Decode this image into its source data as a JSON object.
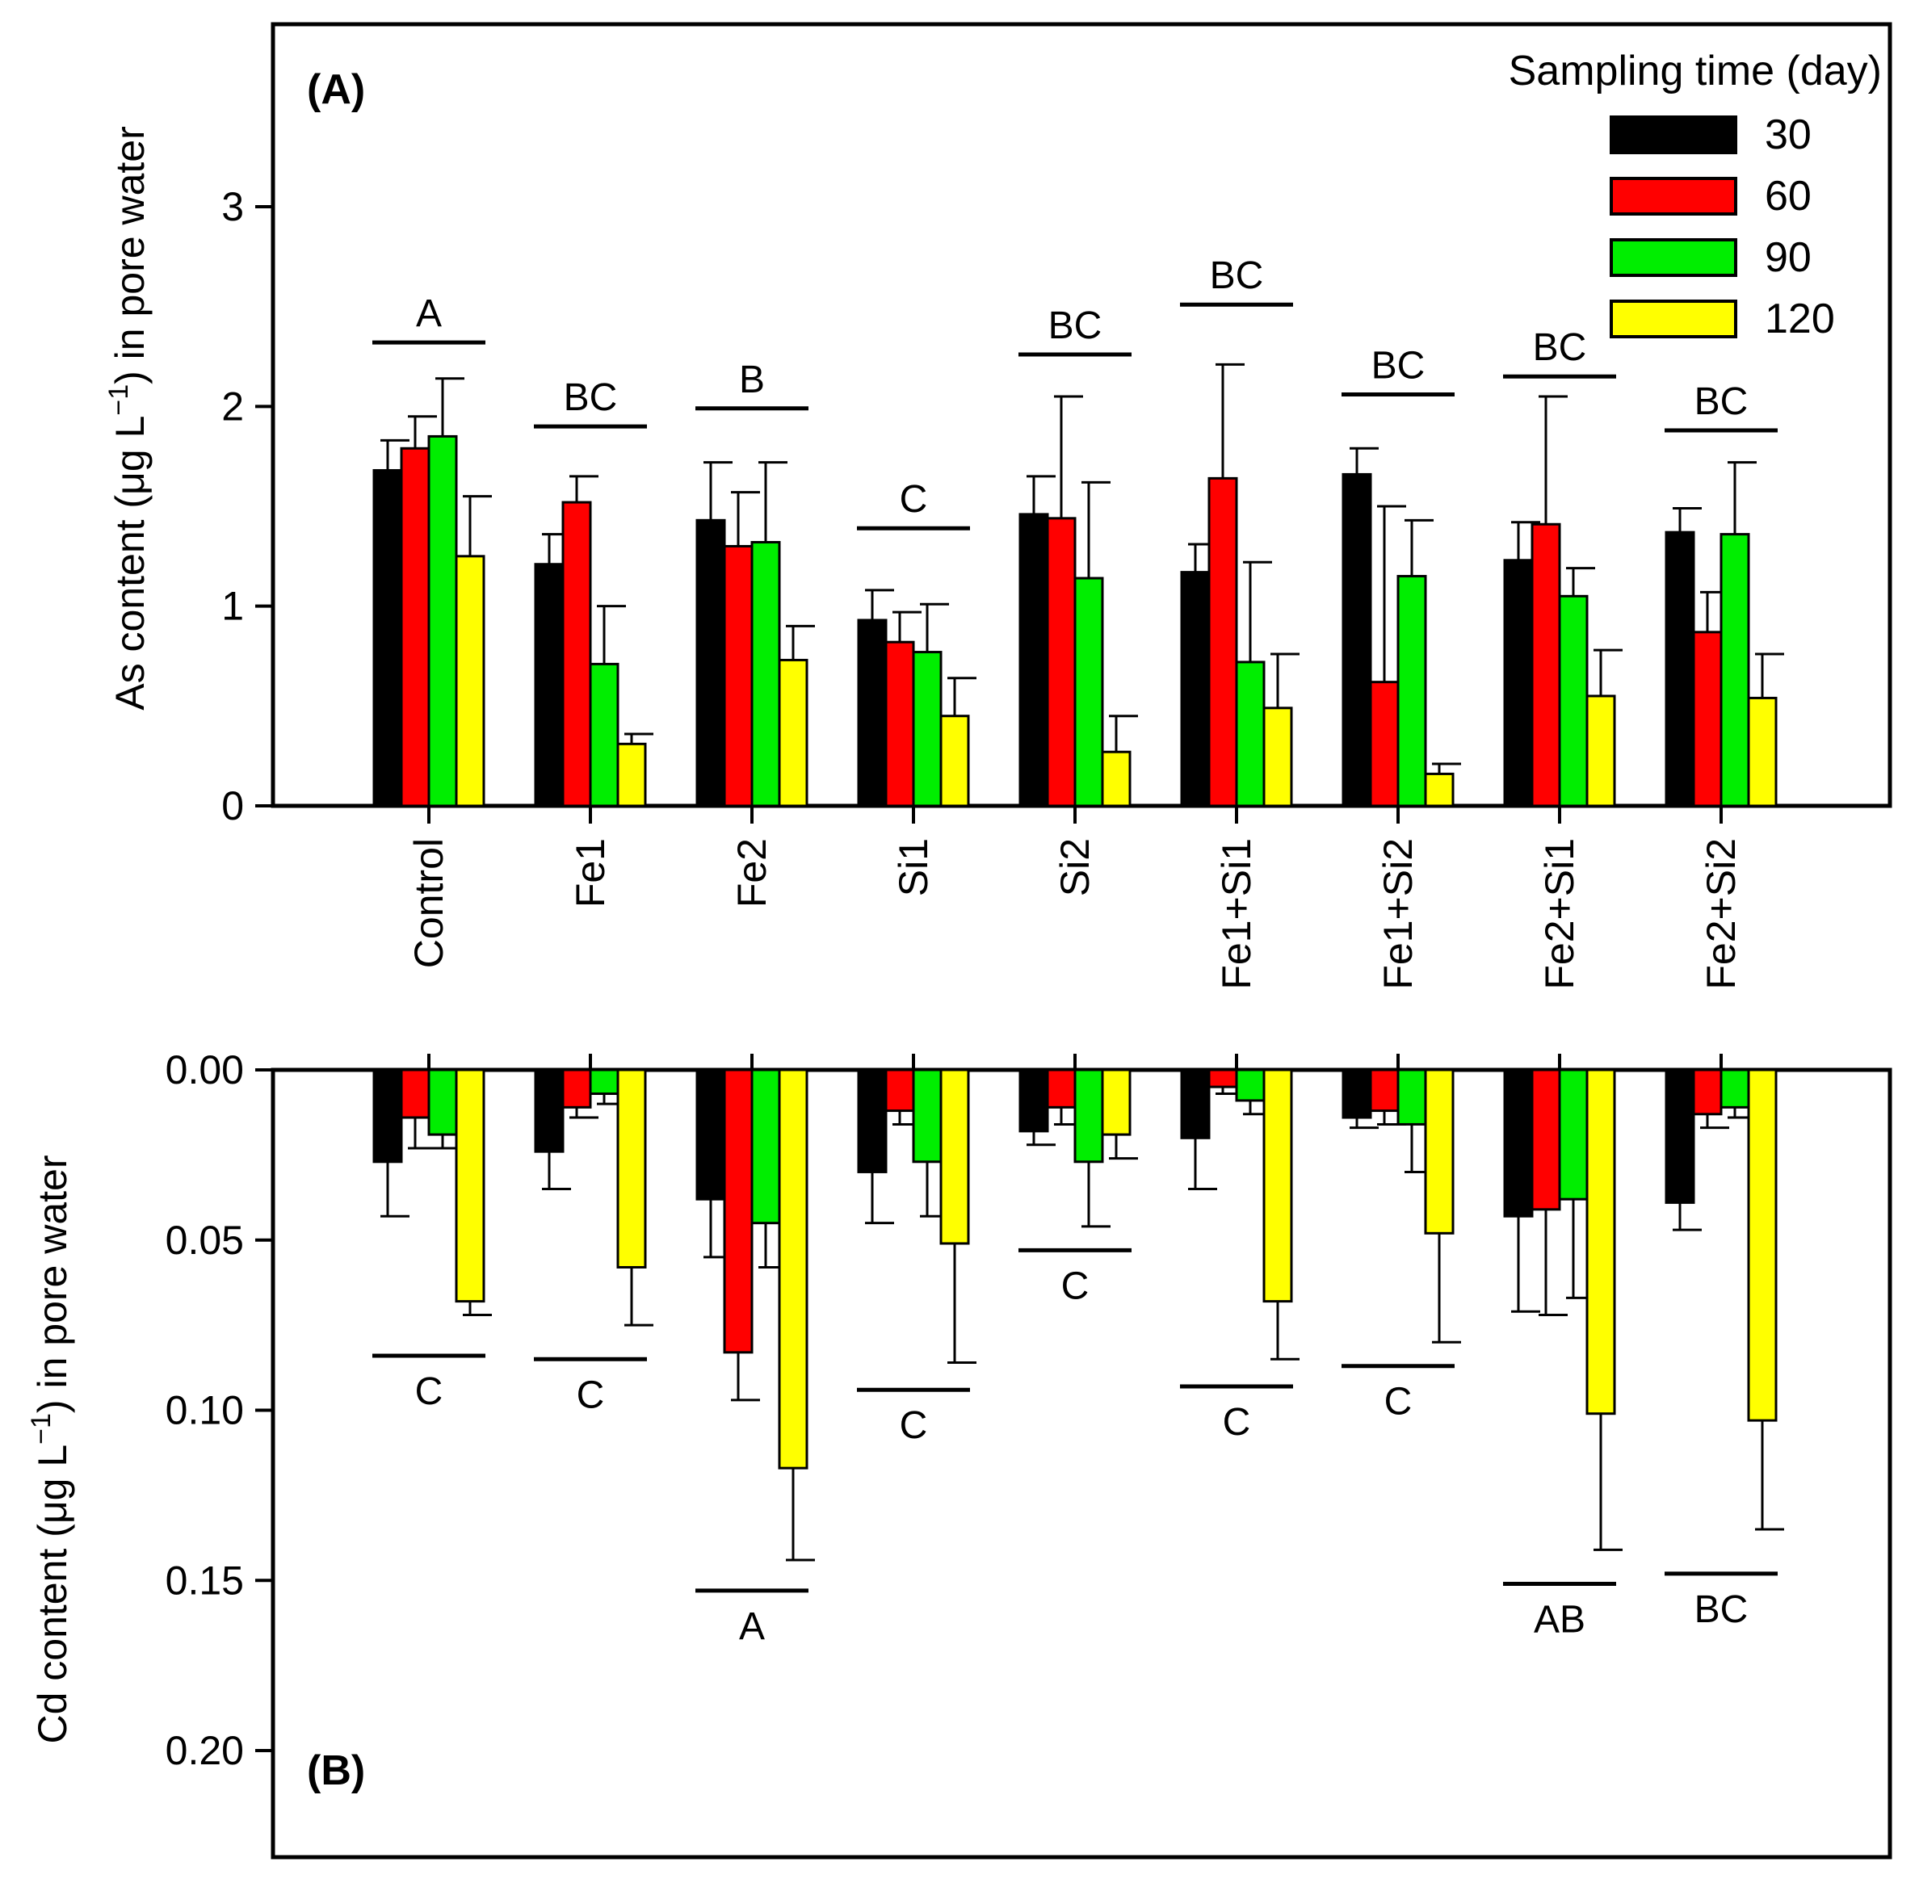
{
  "chart_data": [
    {
      "panel": "(A)",
      "type": "bar",
      "ylabel": "As content (μg L⁻¹) in pore water",
      "ylabel_parts": {
        "before": "As content (",
        "mu": "μ",
        "unit": "g L",
        "sup": "−1",
        "after": ") in pore water"
      },
      "ylim": [
        0,
        3.8
      ],
      "yticks": [
        0,
        1,
        2,
        3
      ],
      "ytick_labels": [
        "0",
        "1",
        "2",
        "3"
      ],
      "categories": [
        "Control",
        "Fe1",
        "Fe2",
        "Si1",
        "Si2",
        "Fe1+Si1",
        "Fe1+Si2",
        "Fe2+Si1",
        "Fe2+Si2"
      ],
      "series": [
        {
          "name": "30",
          "values": [
            1.68,
            1.21,
            1.43,
            0.93,
            1.46,
            1.17,
            1.66,
            1.23,
            1.37
          ],
          "errors": [
            0.15,
            0.15,
            0.29,
            0.15,
            0.19,
            0.14,
            0.13,
            0.19,
            0.12
          ]
        },
        {
          "name": "60",
          "values": [
            1.79,
            1.52,
            1.3,
            0.82,
            1.44,
            1.64,
            0.62,
            1.41,
            0.87
          ],
          "errors": [
            0.16,
            0.13,
            0.27,
            0.15,
            0.61,
            0.57,
            0.88,
            0.64,
            0.2
          ]
        },
        {
          "name": "90",
          "values": [
            1.85,
            0.71,
            1.32,
            0.77,
            1.14,
            0.72,
            1.15,
            1.05,
            1.36
          ],
          "errors": [
            0.29,
            0.29,
            0.4,
            0.24,
            0.48,
            0.5,
            0.28,
            0.14,
            0.36
          ]
        },
        {
          "name": "120",
          "values": [
            1.25,
            0.31,
            0.73,
            0.45,
            0.27,
            0.49,
            0.16,
            0.55,
            0.54
          ],
          "errors": [
            0.3,
            0.05,
            0.17,
            0.19,
            0.18,
            0.27,
            0.05,
            0.23,
            0.22
          ]
        }
      ],
      "group_letters": [
        "A",
        "BC",
        "B",
        "C",
        "BC",
        "BC",
        "BC",
        "BC",
        "BC"
      ],
      "letter_line_values": [
        2.32,
        1.9,
        1.99,
        1.39,
        2.26,
        2.51,
        2.06,
        2.15,
        1.88
      ]
    },
    {
      "panel": "(B)",
      "type": "bar",
      "orientation": "downward",
      "ylabel": "Cd content (μg L⁻¹) in pore water",
      "ylabel_parts": {
        "before": "Cd content (",
        "mu": "μ",
        "unit": "g L",
        "sup": "−1",
        "after": ") in pore water"
      },
      "ylim": [
        0,
        0.225
      ],
      "yticks": [
        0.0,
        0.05,
        0.1,
        0.15,
        0.2
      ],
      "ytick_labels": [
        "0.00",
        "0.05",
        "0.10",
        "0.15",
        "0.20"
      ],
      "categories": [
        "Control",
        "Fe1",
        "Fe2",
        "Si1",
        "Si2",
        "Fe1+Si1",
        "Fe1+Si2",
        "Fe2+Si1",
        "Fe2+Si2"
      ],
      "series": [
        {
          "name": "30",
          "values": [
            0.027,
            0.024,
            0.038,
            0.03,
            0.018,
            0.02,
            0.014,
            0.043,
            0.039
          ],
          "errors": [
            0.016,
            0.011,
            0.017,
            0.015,
            0.004,
            0.015,
            0.003,
            0.028,
            0.008
          ]
        },
        {
          "name": "60",
          "values": [
            0.014,
            0.011,
            0.083,
            0.012,
            0.011,
            0.005,
            0.012,
            0.041,
            0.013
          ],
          "errors": [
            0.009,
            0.003,
            0.014,
            0.004,
            0.005,
            0.002,
            0.004,
            0.031,
            0.004
          ]
        },
        {
          "name": "90",
          "values": [
            0.019,
            0.007,
            0.045,
            0.027,
            0.027,
            0.009,
            0.016,
            0.038,
            0.011
          ],
          "errors": [
            0.004,
            0.003,
            0.013,
            0.016,
            0.019,
            0.004,
            0.014,
            0.029,
            0.003
          ]
        },
        {
          "name": "120",
          "values": [
            0.068,
            0.058,
            0.117,
            0.051,
            0.019,
            0.068,
            0.048,
            0.101,
            0.103
          ],
          "errors": [
            0.004,
            0.017,
            0.027,
            0.035,
            0.007,
            0.017,
            0.032,
            0.04,
            0.032
          ]
        }
      ],
      "group_letters": [
        "C",
        "C",
        "A",
        "C",
        "C",
        "C",
        "C",
        "AB",
        "BC"
      ],
      "letter_line_values": [
        0.084,
        0.085,
        0.153,
        0.094,
        0.053,
        0.093,
        0.087,
        0.151,
        0.148
      ]
    }
  ],
  "legend": {
    "title": "Sampling time (day)",
    "items": [
      {
        "label": "30",
        "color": "#000000"
      },
      {
        "label": "60",
        "color": "#ff0000"
      },
      {
        "label": "90",
        "color": "#00ee00"
      },
      {
        "label": "120",
        "color": "#ffff00"
      }
    ]
  }
}
